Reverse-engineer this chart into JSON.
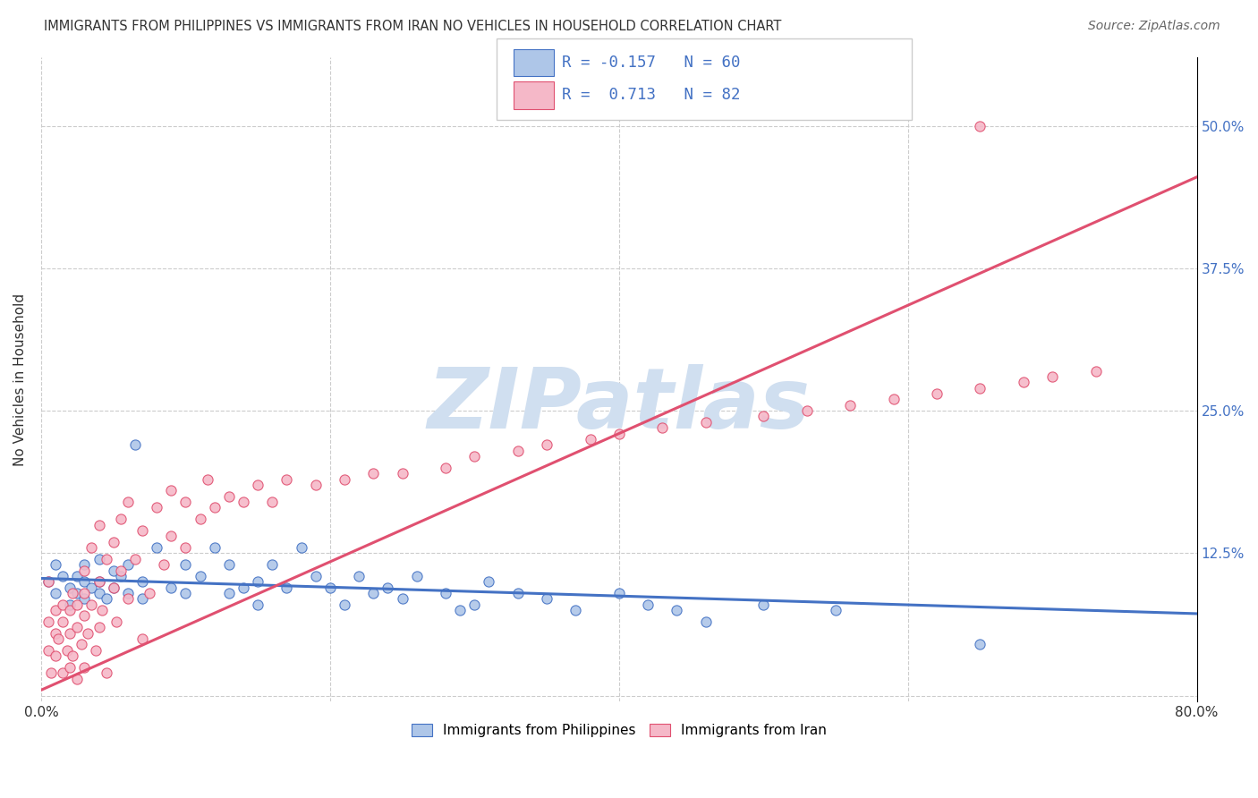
{
  "title": "IMMIGRANTS FROM PHILIPPINES VS IMMIGRANTS FROM IRAN NO VEHICLES IN HOUSEHOLD CORRELATION CHART",
  "source": "Source: ZipAtlas.com",
  "ylabel": "No Vehicles in Household",
  "xlim": [
    0.0,
    0.8
  ],
  "ylim": [
    -0.005,
    0.56
  ],
  "xticks": [
    0.0,
    0.2,
    0.4,
    0.6,
    0.8
  ],
  "xticklabels": [
    "0.0%",
    "",
    "",
    "",
    "80.0%"
  ],
  "yticks": [
    0.0,
    0.125,
    0.25,
    0.375,
    0.5
  ],
  "yticklabels_right": [
    "",
    "12.5%",
    "25.0%",
    "37.5%",
    "50.0%"
  ],
  "blue_color": "#aec6e8",
  "pink_color": "#f5b8c8",
  "blue_line_color": "#4472c4",
  "pink_line_color": "#e05070",
  "blue_R": -0.157,
  "blue_N": 60,
  "pink_R": 0.713,
  "pink_N": 82,
  "watermark": "ZIPatlas",
  "watermark_color": "#d0dff0",
  "legend_label_blue": "Immigrants from Philippines",
  "legend_label_pink": "Immigrants from Iran",
  "blue_scatter_x": [
    0.005,
    0.01,
    0.01,
    0.015,
    0.02,
    0.02,
    0.025,
    0.025,
    0.03,
    0.03,
    0.03,
    0.035,
    0.04,
    0.04,
    0.04,
    0.045,
    0.05,
    0.05,
    0.055,
    0.06,
    0.06,
    0.065,
    0.07,
    0.07,
    0.08,
    0.09,
    0.1,
    0.1,
    0.11,
    0.12,
    0.13,
    0.13,
    0.14,
    0.15,
    0.15,
    0.16,
    0.17,
    0.18,
    0.19,
    0.2,
    0.21,
    0.22,
    0.23,
    0.24,
    0.25,
    0.26,
    0.28,
    0.29,
    0.3,
    0.31,
    0.33,
    0.35,
    0.37,
    0.4,
    0.42,
    0.44,
    0.46,
    0.5,
    0.55,
    0.65
  ],
  "blue_scatter_y": [
    0.1,
    0.115,
    0.09,
    0.105,
    0.08,
    0.095,
    0.09,
    0.105,
    0.1,
    0.085,
    0.115,
    0.095,
    0.12,
    0.09,
    0.1,
    0.085,
    0.11,
    0.095,
    0.105,
    0.09,
    0.115,
    0.22,
    0.1,
    0.085,
    0.13,
    0.095,
    0.115,
    0.09,
    0.105,
    0.13,
    0.09,
    0.115,
    0.095,
    0.1,
    0.08,
    0.115,
    0.095,
    0.13,
    0.105,
    0.095,
    0.08,
    0.105,
    0.09,
    0.095,
    0.085,
    0.105,
    0.09,
    0.075,
    0.08,
    0.1,
    0.09,
    0.085,
    0.075,
    0.09,
    0.08,
    0.075,
    0.065,
    0.08,
    0.075,
    0.045
  ],
  "pink_scatter_x": [
    0.005,
    0.005,
    0.007,
    0.01,
    0.01,
    0.01,
    0.012,
    0.015,
    0.015,
    0.015,
    0.018,
    0.02,
    0.02,
    0.02,
    0.022,
    0.022,
    0.025,
    0.025,
    0.025,
    0.028,
    0.03,
    0.03,
    0.03,
    0.03,
    0.032,
    0.035,
    0.035,
    0.038,
    0.04,
    0.04,
    0.04,
    0.042,
    0.045,
    0.045,
    0.05,
    0.05,
    0.052,
    0.055,
    0.055,
    0.06,
    0.06,
    0.065,
    0.07,
    0.07,
    0.075,
    0.08,
    0.085,
    0.09,
    0.09,
    0.1,
    0.1,
    0.11,
    0.115,
    0.12,
    0.13,
    0.14,
    0.15,
    0.16,
    0.17,
    0.19,
    0.21,
    0.23,
    0.25,
    0.28,
    0.3,
    0.33,
    0.35,
    0.38,
    0.4,
    0.43,
    0.46,
    0.5,
    0.53,
    0.56,
    0.59,
    0.62,
    0.65,
    0.68,
    0.7,
    0.73,
    0.65,
    0.005
  ],
  "pink_scatter_y": [
    0.04,
    0.065,
    0.02,
    0.055,
    0.035,
    0.075,
    0.05,
    0.02,
    0.065,
    0.08,
    0.04,
    0.025,
    0.055,
    0.075,
    0.035,
    0.09,
    0.06,
    0.015,
    0.08,
    0.045,
    0.07,
    0.025,
    0.09,
    0.11,
    0.055,
    0.08,
    0.13,
    0.04,
    0.1,
    0.06,
    0.15,
    0.075,
    0.02,
    0.12,
    0.095,
    0.135,
    0.065,
    0.11,
    0.155,
    0.085,
    0.17,
    0.12,
    0.05,
    0.145,
    0.09,
    0.165,
    0.115,
    0.14,
    0.18,
    0.13,
    0.17,
    0.155,
    0.19,
    0.165,
    0.175,
    0.17,
    0.185,
    0.17,
    0.19,
    0.185,
    0.19,
    0.195,
    0.195,
    0.2,
    0.21,
    0.215,
    0.22,
    0.225,
    0.23,
    0.235,
    0.24,
    0.245,
    0.25,
    0.255,
    0.26,
    0.265,
    0.27,
    0.275,
    0.28,
    0.285,
    0.5,
    0.1
  ],
  "blue_trendline_x": [
    0.0,
    0.8
  ],
  "blue_trendline_y": [
    0.103,
    0.072
  ],
  "pink_trendline_x": [
    0.0,
    0.8
  ],
  "pink_trendline_y": [
    0.005,
    0.455
  ]
}
